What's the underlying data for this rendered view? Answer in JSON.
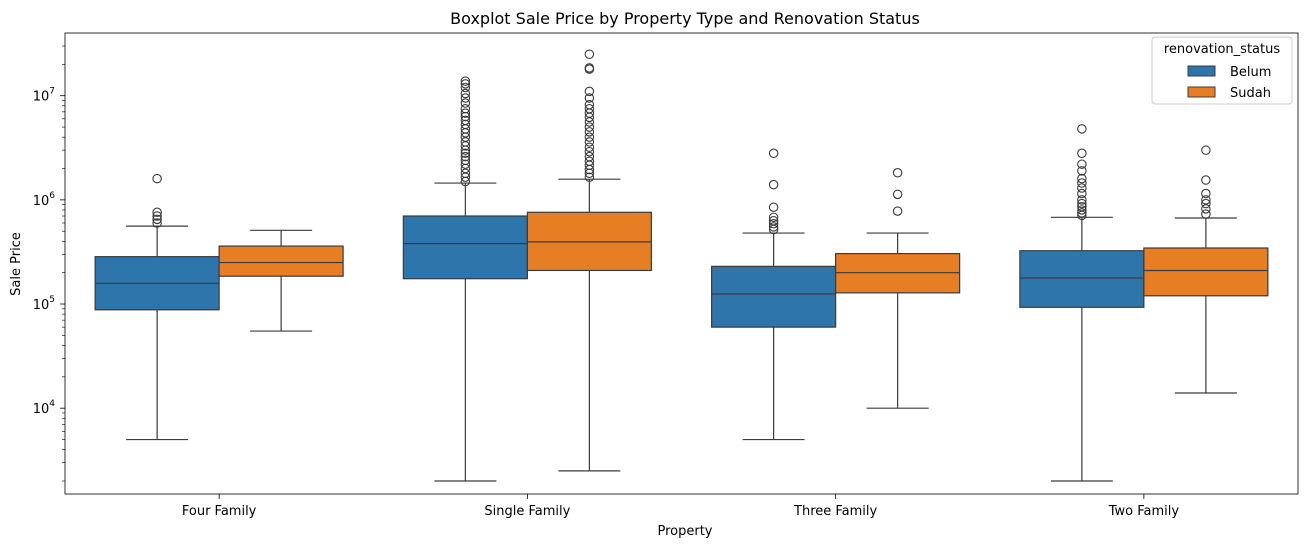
{
  "chart_data": {
    "type": "box",
    "title": "Boxplot Sale Price by Property Type and Renovation Status",
    "xlabel": "Property",
    "ylabel": "Sale Price",
    "y_scale": "log",
    "ylim": [
      1500,
      40000000
    ],
    "y_ticks": [
      {
        "value": 10000,
        "base": "10",
        "exp": "4"
      },
      {
        "value": 100000,
        "base": "10",
        "exp": "5"
      },
      {
        "value": 1000000,
        "base": "10",
        "exp": "6"
      },
      {
        "value": 10000000,
        "base": "10",
        "exp": "7"
      }
    ],
    "categories": [
      "Four Family",
      "Single Family",
      "Three Family",
      "Two Family"
    ],
    "legend": {
      "title": "renovation_status",
      "position": "top-right"
    },
    "series": [
      {
        "name": "Belum",
        "color": "#2e75ac",
        "boxes": [
          {
            "whisker_low": 5000,
            "q1": 88000,
            "median": 158000,
            "q3": 285000,
            "whisker_high": 560000,
            "outliers": [
              600000,
              650000,
              700000,
              760000,
              1600000
            ]
          },
          {
            "whisker_low": 2000,
            "q1": 175000,
            "median": 380000,
            "q3": 700000,
            "whisker_high": 1450000,
            "outliers": [
              1500000,
              1650000,
              1800000,
              2000000,
              2200000,
              2400000,
              2600000,
              2800000,
              3000000,
              3300000,
              3600000,
              4000000,
              4400000,
              4800000,
              5300000,
              5800000,
              6300000,
              6800000,
              7500000,
              8500000,
              9500000,
              10500000,
              12000000,
              13000000,
              13800000
            ]
          },
          {
            "whisker_low": 5000,
            "q1": 60000,
            "median": 125000,
            "q3": 230000,
            "whisker_high": 480000,
            "outliers": [
              520000,
              550000,
              590000,
              630000,
              680000,
              850000,
              1400000,
              2800000
            ]
          },
          {
            "whisker_low": 2000,
            "q1": 93000,
            "median": 178000,
            "q3": 325000,
            "whisker_high": 680000,
            "outliers": [
              710000,
              750000,
              800000,
              860000,
              920000,
              1000000,
              1150000,
              1300000,
              1450000,
              1600000,
              1900000,
              2200000,
              2800000,
              4800000
            ]
          }
        ]
      },
      {
        "name": "Sudah",
        "color": "#e87e23",
        "boxes": [
          {
            "whisker_low": 55000,
            "q1": 185000,
            "median": 250000,
            "q3": 360000,
            "whisker_high": 510000,
            "outliers": []
          },
          {
            "whisker_low": 2500,
            "q1": 210000,
            "median": 395000,
            "q3": 760000,
            "whisker_high": 1580000,
            "outliers": [
              1650000,
              1800000,
              1950000,
              2150000,
              2350000,
              2600000,
              2900000,
              3200000,
              3600000,
              4000000,
              4500000,
              5000000,
              5600000,
              6200000,
              6800000,
              7500000,
              8200000,
              9500000,
              11000000,
              18000000,
              18500000,
              25000000
            ]
          },
          {
            "whisker_low": 10000,
            "q1": 128000,
            "median": 200000,
            "q3": 305000,
            "whisker_high": 480000,
            "outliers": [
              780000,
              1130000,
              1820000
            ]
          },
          {
            "whisker_low": 14000,
            "q1": 120000,
            "median": 210000,
            "q3": 345000,
            "whisker_high": 670000,
            "outliers": [
              730000,
              820000,
              920000,
              1000000,
              1150000,
              1550000,
              3000000
            ]
          }
        ]
      }
    ]
  }
}
